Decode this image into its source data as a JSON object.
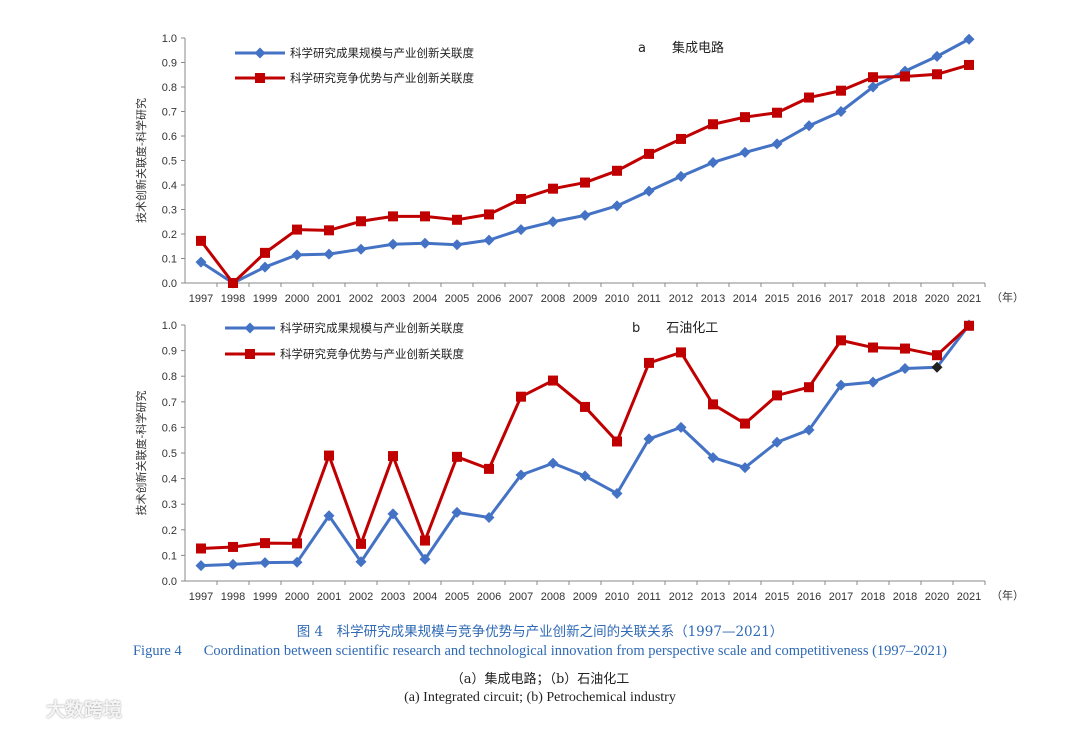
{
  "colors": {
    "blue": "#4472c4",
    "red": "#c00000",
    "last_point_marker": "#222222",
    "axis": "#888888",
    "caption": "#2f6ab5"
  },
  "chart_data": [
    {
      "type": "line",
      "panel_label": "a",
      "title": "集成电路",
      "ylabel": "技术创新关联度-科学研究",
      "x_unit": "（年）",
      "categories": [
        "1997",
        "1998",
        "1999",
        "2000",
        "2001",
        "2002",
        "2003",
        "2004",
        "2005",
        "2006",
        "2007",
        "2008",
        "2009",
        "2010",
        "2011",
        "2012",
        "2013",
        "2014",
        "2015",
        "2016",
        "2017",
        "2018",
        "2018",
        "2020",
        "2021"
      ],
      "ylim": [
        0,
        1.0
      ],
      "yticks": [
        "0.0",
        "0.1",
        "0.2",
        "0.3",
        "0.4",
        "0.5",
        "0.6",
        "0.7",
        "0.8",
        "0.9",
        "1.0"
      ],
      "legend_position": "top-left",
      "series": [
        {
          "name": "科学研究成果规模与产业创新关联度",
          "color": "#4472c4",
          "marker": "diamond",
          "values": [
            0.085,
            0.0,
            0.065,
            0.115,
            0.118,
            0.138,
            0.158,
            0.162,
            0.156,
            0.175,
            0.218,
            0.25,
            0.276,
            0.315,
            0.375,
            0.435,
            0.492,
            0.533,
            0.568,
            0.642,
            0.7,
            0.8,
            0.865,
            0.925,
            0.995
          ]
        },
        {
          "name": "科学研究竞争优势与产业创新关联度",
          "color": "#c00000",
          "marker": "square",
          "values": [
            0.172,
            0.0,
            0.123,
            0.218,
            0.215,
            0.252,
            0.272,
            0.272,
            0.258,
            0.28,
            0.343,
            0.385,
            0.41,
            0.458,
            0.527,
            0.588,
            0.648,
            0.677,
            0.695,
            0.757,
            0.785,
            0.84,
            0.843,
            0.852,
            0.89
          ]
        }
      ]
    },
    {
      "type": "line",
      "panel_label": "b",
      "title": "石油化工",
      "ylabel": "技术创新关联度-科学研究",
      "x_unit": "（年）",
      "categories": [
        "1997",
        "1998",
        "1999",
        "2000",
        "2001",
        "2002",
        "2003",
        "2004",
        "2005",
        "2006",
        "2007",
        "2008",
        "2009",
        "2010",
        "2011",
        "2012",
        "2013",
        "2014",
        "2015",
        "2016",
        "2017",
        "2018",
        "2018",
        "2020",
        "2021"
      ],
      "ylim": [
        0,
        1.0
      ],
      "yticks": [
        "0.0",
        "0.1",
        "0.2",
        "0.3",
        "0.4",
        "0.5",
        "0.6",
        "0.7",
        "0.8",
        "0.9",
        "1.0"
      ],
      "legend_position": "top-left",
      "series": [
        {
          "name": "科学研究成果规模与产业创新关联度",
          "color": "#4472c4",
          "marker": "diamond",
          "values": [
            0.06,
            0.065,
            0.072,
            0.073,
            0.255,
            0.075,
            0.262,
            0.085,
            0.268,
            0.248,
            0.414,
            0.46,
            0.41,
            0.342,
            0.555,
            0.6,
            0.482,
            0.443,
            0.542,
            0.59,
            0.765,
            0.777,
            0.83,
            0.835,
            1.0
          ]
        },
        {
          "name": "科学研究竞争优势与产业创新关联度",
          "color": "#c00000",
          "marker": "square",
          "values": [
            0.127,
            0.133,
            0.148,
            0.147,
            0.49,
            0.145,
            0.488,
            0.158,
            0.485,
            0.438,
            0.72,
            0.783,
            0.68,
            0.545,
            0.852,
            0.893,
            0.69,
            0.615,
            0.725,
            0.757,
            0.94,
            0.912,
            0.908,
            0.882,
            0.997
          ]
        }
      ]
    }
  ],
  "caption": {
    "zh": "图 4　科学研究成果规模与竞争优势与产业创新之间的关联关系（1997—2021）",
    "en_label": "Figure 4",
    "en": "Coordination between scientific research and technological innovation from perspective scale and competitiveness (1997–2021)",
    "sub_zh": "（a）集成电路；（b）石油化工",
    "sub_en": "(a) Integrated circuit; (b) Petrochemical industry"
  },
  "watermark": {
    "text": "大数跨境",
    "icon": "chat-bubbles-icon"
  }
}
